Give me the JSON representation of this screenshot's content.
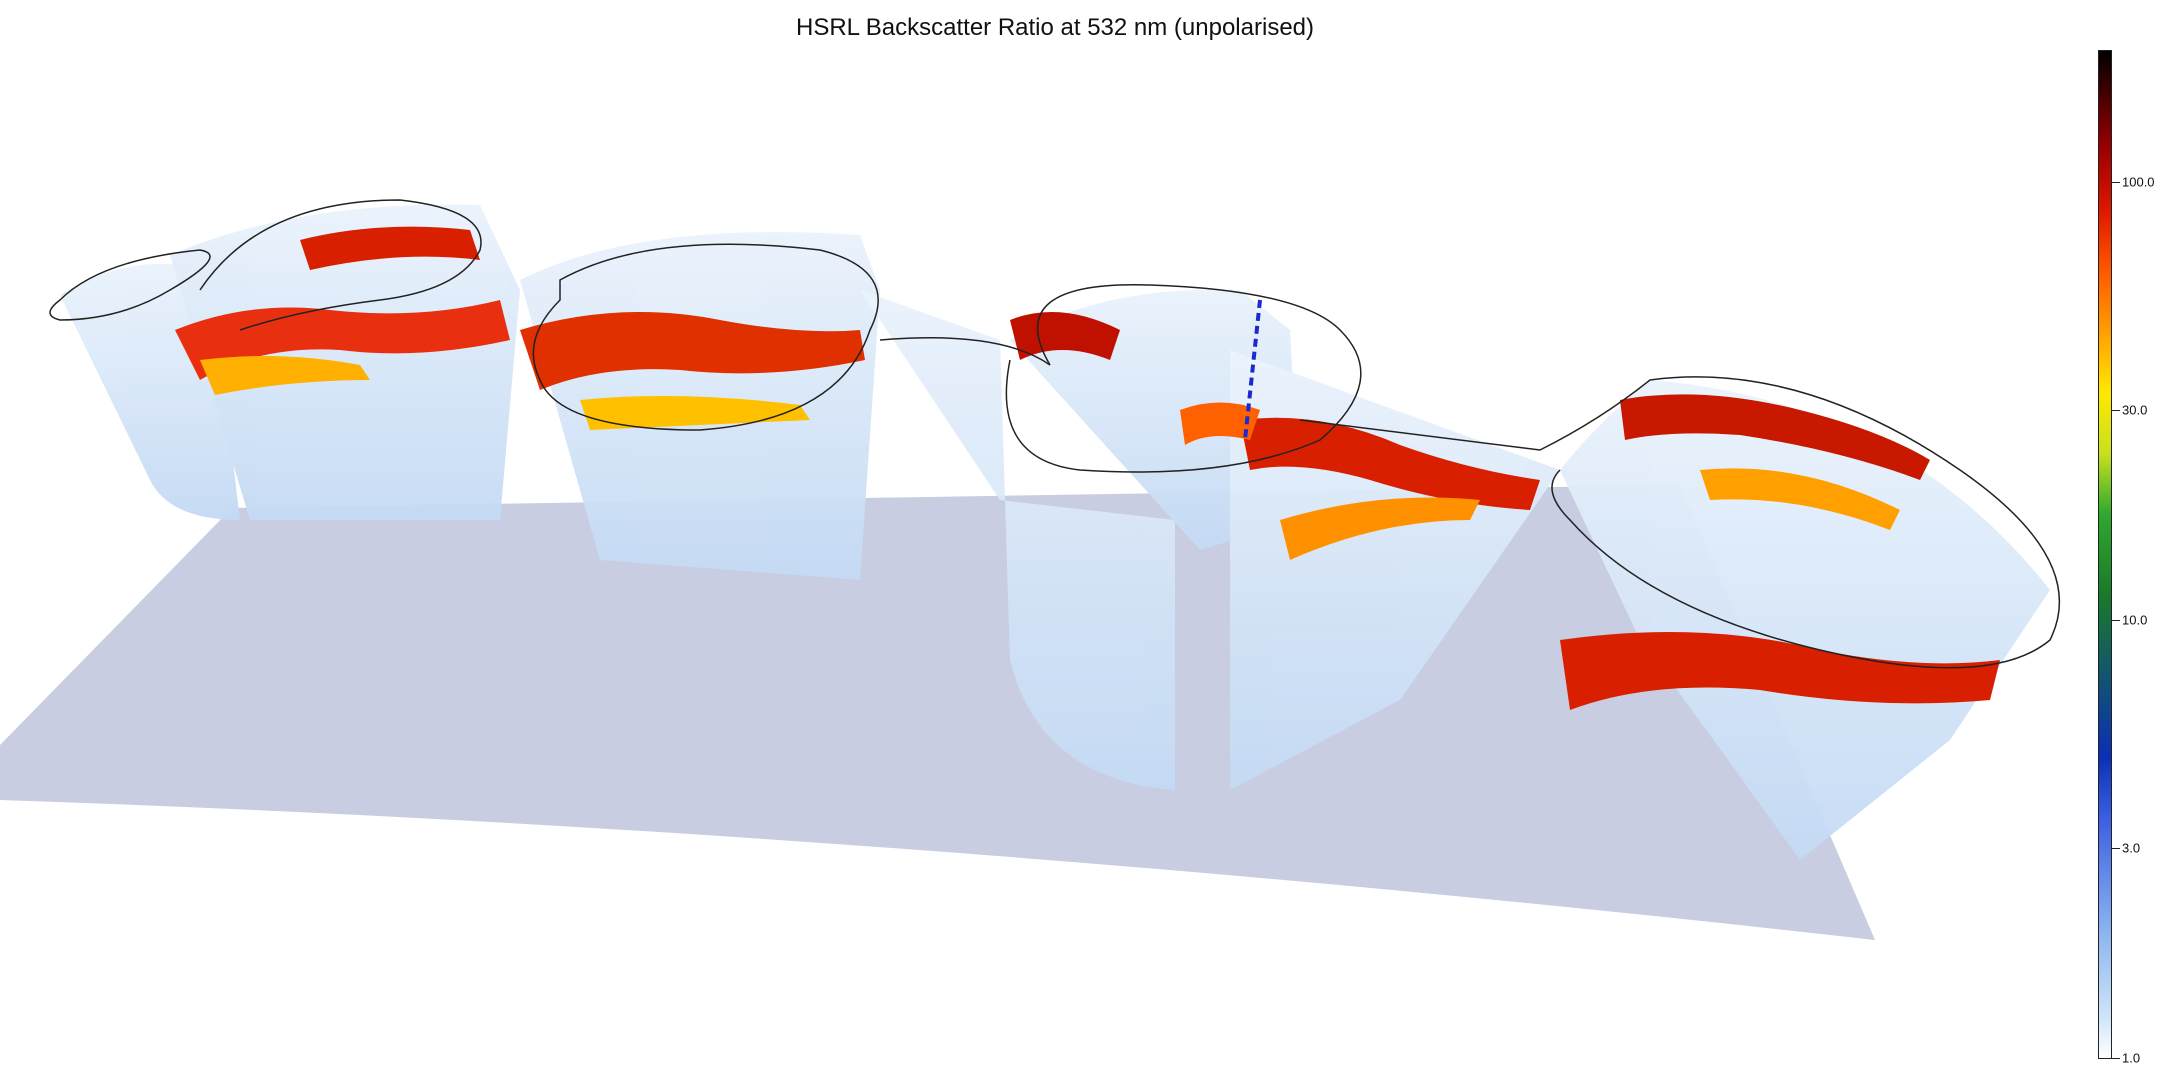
{
  "chart_data": {
    "type": "heatmap",
    "title": "HSRL Backscatter Ratio at 532 nm (unpolarised)",
    "colorbar": {
      "scale": "log",
      "range": [
        1.0,
        300.0
      ],
      "ticks": [
        1.0,
        3.0,
        10.0,
        30.0,
        100.0
      ],
      "tick_labels": [
        "1.0",
        "3.0",
        "10.0",
        "30.0",
        "100.0"
      ],
      "colormap": [
        "#ffffff",
        "#cfe4f8",
        "#8fb8f0",
        "#3a5ee0",
        "#0b2fb4",
        "#1a7a2a",
        "#2fa82f",
        "#c8e020",
        "#ffe800",
        "#ffa000",
        "#ff5a00",
        "#e01800",
        "#a00000",
        "#400000",
        "#000000"
      ]
    },
    "render": "3D curtain of lidar backscatter along the flight track above a ground plane",
    "colors": {
      "ground_plane": "#c8cde2",
      "curtain_background": "#d8e8f8",
      "flight_track": "#222222",
      "marker": "#1a2ad0"
    }
  }
}
